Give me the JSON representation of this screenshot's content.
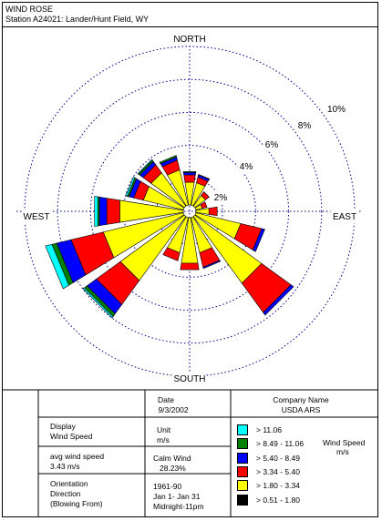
{
  "header": {
    "title": "WIND ROSE",
    "station": "Station A24021: Lander/Hunt Field, WY"
  },
  "chart_data": {
    "type": "wind-rose",
    "direction_labels": {
      "north": "NORTH",
      "south": "SOUTH",
      "east": "EAST",
      "west": "WEST"
    },
    "rings": [
      {
        "value": 2,
        "label": "2%"
      },
      {
        "value": 4,
        "label": "4%"
      },
      {
        "value": 6,
        "label": "6%"
      },
      {
        "value": 8,
        "label": "8%"
      },
      {
        "value": 10,
        "label": "10%"
      }
    ],
    "speed_classes": [
      {
        "label": "> 0.51 - 1.80",
        "color": "#000000"
      },
      {
        "label": "> 1.80 - 3.34",
        "color": "#ffff00"
      },
      {
        "label": "> 3.34 - 5.40",
        "color": "#ff0000"
      },
      {
        "label": "> 5.40 - 8.49",
        "color": "#0000ff"
      },
      {
        "label": "> 8.49 - 11.06",
        "color": "#008000"
      },
      {
        "label": "> 11.06",
        "color": "#00ffff"
      }
    ],
    "directions_deg": [
      0,
      22.5,
      45,
      67.5,
      90,
      112.5,
      135,
      157.5,
      180,
      202.5,
      225,
      247.5,
      270,
      292.5,
      315,
      337.5
    ],
    "series": [
      {
        "speed": "> 0.51 - 1.80",
        "values": [
          0,
          0,
          0,
          0,
          0,
          0,
          0,
          0,
          0,
          0,
          0,
          0,
          0,
          0,
          0,
          0
        ]
      },
      {
        "speed": "> 1.80 - 3.34",
        "values": [
          1.4,
          1.4,
          0.8,
          0.4,
          0.8,
          2.8,
          5.0,
          2.2,
          2.8,
          2.2,
          4.8,
          5.0,
          3.9,
          2.5,
          2.5,
          2.2
        ]
      },
      {
        "speed": "> 3.34 - 5.40",
        "values": [
          0.45,
          0.35,
          0.28,
          0.3,
          0.5,
          1.3,
          2.2,
          0.9,
          0.4,
          0.5,
          1.8,
          2.0,
          0.8,
          0.6,
          0.6,
          0.6
        ]
      },
      {
        "speed": "> 5.40 - 8.49",
        "values": [
          0.15,
          0.14,
          0.0,
          0.0,
          0.0,
          0.2,
          0.2,
          0.08,
          0.0,
          0.0,
          0.7,
          0.9,
          0.45,
          0.3,
          0.25,
          0.2
        ]
      },
      {
        "speed": "> 8.49 - 11.06",
        "values": [
          0.05,
          0.03,
          0.0,
          0.0,
          0.0,
          0.0,
          0.0,
          0.0,
          0.0,
          0.0,
          0.2,
          0.3,
          0.1,
          0.1,
          0.1,
          0.1
        ]
      },
      {
        "speed": "> 11.06",
        "values": [
          0.0,
          0.0,
          0.0,
          0.0,
          0.0,
          0.0,
          0.0,
          0.0,
          0.0,
          0.0,
          0.1,
          0.4,
          0.2,
          0.1,
          0.05,
          0.0
        ]
      }
    ],
    "calm_percent": 28.23
  },
  "info": {
    "date_label": "Date",
    "date_value": "9/3/2002",
    "company_label": "Company Name",
    "company_value": "USDA ARS",
    "display_label": "Display",
    "display_value": "Wind Speed",
    "unit_label": "Unit",
    "unit_value": "m/s",
    "avg_label": "avg wind speed",
    "avg_value": "3.43 m/s",
    "calm_label": "Calm Wind",
    "calm_value": "28.23%",
    "orientation_label": "Orientation",
    "orientation_line2": "Direction",
    "orientation_line3": "(Blowing From)",
    "period_years": "1961-90",
    "period_days": "Jan 1- Jan 31",
    "period_hours": "Midnight-11pm",
    "legend_title_line1": "Wind Speed",
    "legend_title_line2": "m/s"
  }
}
